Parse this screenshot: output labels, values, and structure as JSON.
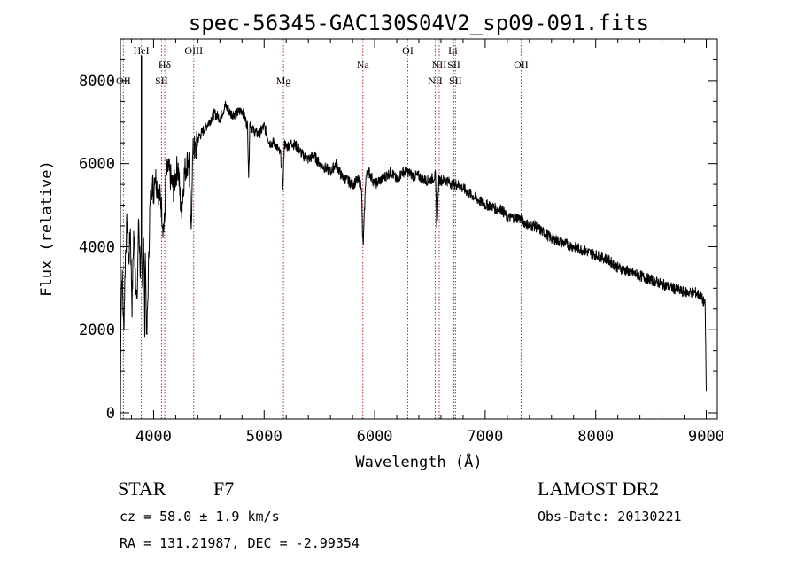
{
  "chart_data": {
    "type": "line",
    "title": "spec-56345-GAC130S04V2_sp09-091.fits",
    "xlabel": "Wavelength (Å)",
    "ylabel": "Flux (relative)",
    "xlim": [
      3700,
      9100
    ],
    "ylim": [
      -150,
      9000
    ],
    "x_ticks": [
      4000,
      5000,
      6000,
      7000,
      8000,
      9000
    ],
    "x_tick_labels": [
      "4000",
      "5000",
      "6000",
      "7000",
      "8000",
      "9000"
    ],
    "y_ticks": [
      0,
      2000,
      4000,
      6000,
      8000
    ],
    "y_tick_labels": [
      "0",
      "2000",
      "4000",
      "6000",
      "8000"
    ],
    "grid": false,
    "series": [
      {
        "name": "flux",
        "x": [
          3700,
          3705,
          3715,
          3730,
          3745,
          3760,
          3775,
          3790,
          3805,
          3820,
          3835,
          3850,
          3865,
          3880,
          3890,
          3900,
          3910,
          3920,
          3925,
          3930,
          3938,
          3950,
          3965,
          3970,
          3980,
          3990,
          4000,
          4010,
          4030,
          4050,
          4070,
          4090,
          4101,
          4110,
          4130,
          4150,
          4180,
          4200,
          4220,
          4250,
          4280,
          4300,
          4320,
          4340,
          4350,
          4360,
          4380,
          4400,
          4450,
          4500,
          4550,
          4600,
          4650,
          4700,
          4750,
          4800,
          4850,
          4861,
          4870,
          4900,
          4950,
          5000,
          5050,
          5100,
          5150,
          5170,
          5183,
          5200,
          5250,
          5300,
          5350,
          5400,
          5450,
          5500,
          5550,
          5600,
          5650,
          5700,
          5750,
          5800,
          5850,
          5880,
          5890,
          5896,
          5920,
          5950,
          6000,
          6050,
          6100,
          6150,
          6200,
          6250,
          6300,
          6350,
          6400,
          6450,
          6500,
          6550,
          6563,
          6580,
          6600,
          6650,
          6700,
          6750,
          6800,
          6850,
          6900,
          6950,
          7000,
          7050,
          7100,
          7150,
          7200,
          7250,
          7300,
          7350,
          7400,
          7450,
          7500,
          7600,
          7700,
          7800,
          7900,
          8000,
          8100,
          8200,
          8300,
          8400,
          8500,
          8600,
          8700,
          8800,
          8900,
          8950,
          8990,
          9000
        ],
        "y": [
          0,
          2500,
          3400,
          2000,
          3800,
          4600,
          3600,
          4400,
          2600,
          4300,
          3500,
          2500,
          4700,
          3400,
          3800,
          3000,
          4400,
          2000,
          4200,
          3000,
          1700,
          3000,
          4800,
          5000,
          5400,
          5600,
          5200,
          5800,
          5500,
          5300,
          5000,
          4400,
          4600,
          5600,
          5900,
          5700,
          5400,
          5700,
          6000,
          4800,
          5800,
          6000,
          6100,
          4200,
          5900,
          6400,
          6300,
          6600,
          6800,
          7000,
          7200,
          7100,
          7400,
          7200,
          7200,
          7300,
          6900,
          5600,
          7000,
          6800,
          6700,
          6900,
          6500,
          6500,
          6200,
          5400,
          6500,
          6400,
          6500,
          6400,
          6200,
          6100,
          6200,
          6000,
          5900,
          5800,
          6000,
          5700,
          5600,
          5500,
          5600,
          5500,
          4300,
          4000,
          5700,
          5800,
          5500,
          5600,
          5700,
          5800,
          5600,
          5800,
          5800,
          5700,
          5700,
          5600,
          5600,
          5700,
          4400,
          5600,
          5600,
          5600,
          5500,
          5500,
          5400,
          5300,
          5200,
          5100,
          5000,
          5000,
          4900,
          4900,
          4700,
          4700,
          4700,
          4600,
          4500,
          4500,
          4400,
          4200,
          4100,
          4000,
          3900,
          3800,
          3700,
          3500,
          3400,
          3300,
          3200,
          3100,
          3000,
          2900,
          2900,
          2800,
          2600,
          500
        ]
      }
    ],
    "lines": [
      {
        "label": "OII",
        "wavelength": 3727,
        "row": "low"
      },
      {
        "label": "HeI",
        "wavelength": 3889,
        "row": "high"
      },
      {
        "label": "Hδ",
        "wavelength": 4101,
        "row": "mid"
      },
      {
        "label": "SII",
        "wavelength": 4072,
        "row": "low"
      },
      {
        "label": "OIII",
        "wavelength": 4363,
        "row": "high"
      },
      {
        "label": "Mg",
        "wavelength": 5175,
        "row": "low"
      },
      {
        "label": "Na",
        "wavelength": 5893,
        "row": "mid"
      },
      {
        "label": "OI",
        "wavelength": 6300,
        "row": "high"
      },
      {
        "label": "NII",
        "wavelength": 6548,
        "row": "low"
      },
      {
        "label": "NII",
        "wavelength": 6584,
        "row": "mid"
      },
      {
        "label": "Li",
        "wavelength": 6708,
        "row": "high"
      },
      {
        "label": "SII",
        "wavelength": 6717,
        "row": "mid"
      },
      {
        "label": "SII",
        "wavelength": 6731,
        "row": "low"
      },
      {
        "label": "OII",
        "wavelength": 7325,
        "row": "mid"
      }
    ]
  },
  "info": {
    "object_type": "STAR",
    "subclass": "F7",
    "survey": "LAMOST DR2",
    "cz": "cz = 58.0 ± 1.9 km/s",
    "obs_date": "Obs-Date: 20130221",
    "radec": "RA = 131.21987, DEC =  -2.99354"
  },
  "colors": {
    "spectrum": "#000000",
    "line_marker": "#b03030",
    "axis": "#000000"
  }
}
